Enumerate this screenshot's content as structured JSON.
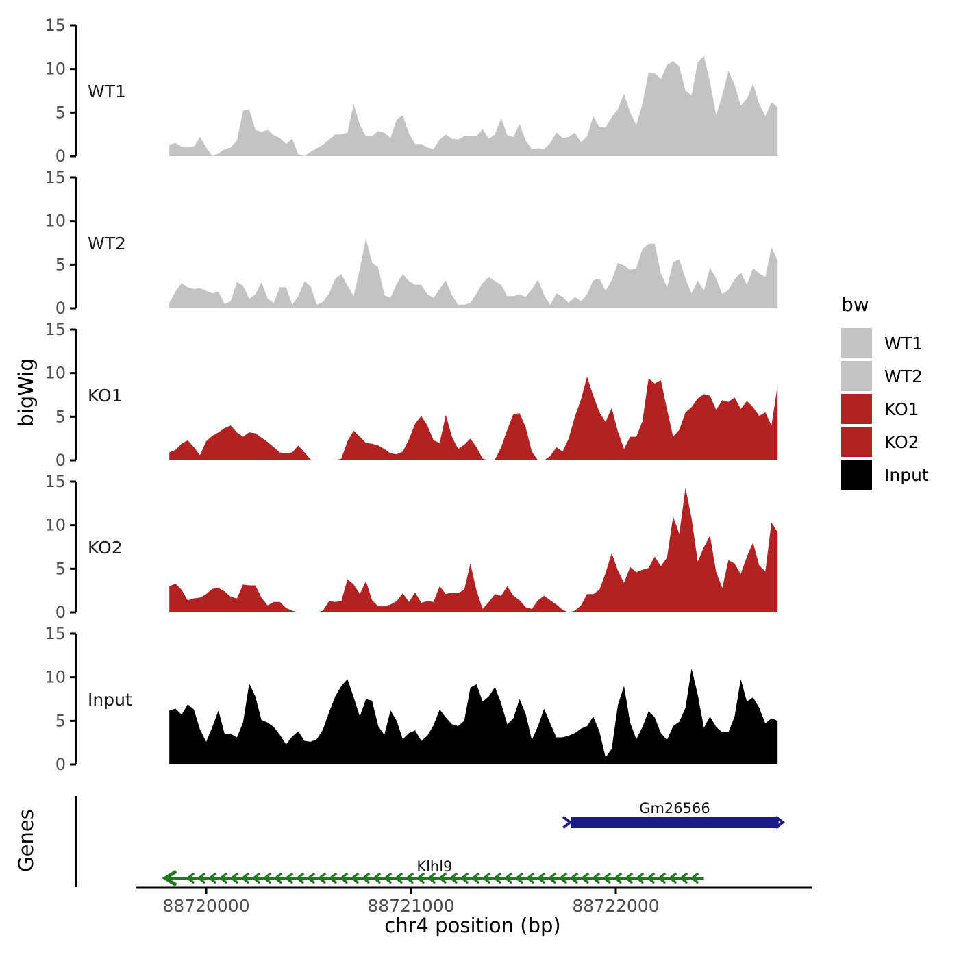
{
  "figure": {
    "y_axis_title": "bigWig",
    "genes_axis_title": "Genes",
    "x_axis_title": "chr4 position (bp)",
    "background": "#ffffff"
  },
  "y_axis": {
    "range": [
      0,
      15
    ],
    "ticks": [
      0,
      5,
      10,
      15
    ],
    "tick_color": "#4d4d4d"
  },
  "x_axis": {
    "title": "chr4 position (bp)",
    "ticks": [
      {
        "pos": 88720000,
        "label": "88720000"
      },
      {
        "pos": 88721000,
        "label": "88721000"
      },
      {
        "pos": 88722000,
        "label": "88722000"
      }
    ],
    "tick_color": "#4d4d4d"
  },
  "legend": {
    "title": "bw",
    "items": [
      {
        "label": "WT1",
        "color": "#c3c3c3"
      },
      {
        "label": "WT2",
        "color": "#c3c3c3"
      },
      {
        "label": "KO1",
        "color": "#b22222"
      },
      {
        "label": "KO2",
        "color": "#b22222"
      },
      {
        "label": "Input",
        "color": "#000000"
      }
    ]
  },
  "chart_data": {
    "type": "area",
    "title": "",
    "xlabel": "chr4 position (bp)",
    "ylabel": "bigWig",
    "ylim": [
      0,
      15
    ],
    "x_range": [
      88719650,
      88722960
    ],
    "x_start": 88719820,
    "x_step": 30,
    "grid": false,
    "legend_position": "right",
    "series": [
      {
        "name": "WT1",
        "color": "#c3c3c3",
        "values": [
          1.3,
          1.5,
          1.1,
          1.0,
          1.1,
          2.2,
          1.0,
          0,
          0.3,
          0.8,
          1.0,
          1.8,
          5.2,
          5.4,
          3.0,
          2.8,
          3.0,
          2.4,
          2.1,
          1.4,
          2.0,
          0.2,
          0,
          0.5,
          0.9,
          1.3,
          1.9,
          2.5,
          2.5,
          2.7,
          6.0,
          3.6,
          2.3,
          2.3,
          2.9,
          2.7,
          2.1,
          4.2,
          4.7,
          2.6,
          1.4,
          1.4,
          1.0,
          0.8,
          1.9,
          2.5,
          2.0,
          1.9,
          2.3,
          2.3,
          2.3,
          3.1,
          2.0,
          2.5,
          4.4,
          2.4,
          2.2,
          3.7,
          1.8,
          0.8,
          0.9,
          0.8,
          1.5,
          2.7,
          2.1,
          2.2,
          2.7,
          1.6,
          2.3,
          4.6,
          3.3,
          3.3,
          4.5,
          5.4,
          7.2,
          5.0,
          3.6,
          6.0,
          9.6,
          9.5,
          8.8,
          10.5,
          10.9,
          10.3,
          7.5,
          7.0,
          10.8,
          11.5,
          8.5,
          4.7,
          7.0,
          9.8,
          8.2,
          5.8,
          6.6,
          8.3,
          6.0,
          4.6,
          6.2,
          5.6
        ]
      },
      {
        "name": "WT2",
        "color": "#c3c3c3",
        "values": [
          0.6,
          1.9,
          2.9,
          2.4,
          2.2,
          2.3,
          2.0,
          1.7,
          1.9,
          0.5,
          0.8,
          3.0,
          2.6,
          1.1,
          1.6,
          3.0,
          1.1,
          0.6,
          2.4,
          2.4,
          0.4,
          1.4,
          3.1,
          2.5,
          0.4,
          0.7,
          1.7,
          3.4,
          3.9,
          2.6,
          1.4,
          4.5,
          8.0,
          5.2,
          4.7,
          1.5,
          1.2,
          2.8,
          3.9,
          3.1,
          2.7,
          2.7,
          1.6,
          1.2,
          2.2,
          3.2,
          1.5,
          0.4,
          0.4,
          0.6,
          1.7,
          2.9,
          3.6,
          3.1,
          2.7,
          1.4,
          1.4,
          1.6,
          1.3,
          2.2,
          3.3,
          1.5,
          0.4,
          1.7,
          1.3,
          0.6,
          1.3,
          0.8,
          1.6,
          3.2,
          3.4,
          2.0,
          3.2,
          5.2,
          4.9,
          4.4,
          4.6,
          6.8,
          7.4,
          7.4,
          4.0,
          2.4,
          5.3,
          5.6,
          3.4,
          1.7,
          3.2,
          2.0,
          4.7,
          3.4,
          1.6,
          2.1,
          3.3,
          4.1,
          2.7,
          4.6,
          4.0,
          3.6,
          7.0,
          5.5
        ]
      },
      {
        "name": "KO1",
        "color": "#b22222",
        "values": [
          0.9,
          1.2,
          1.9,
          2.3,
          1.5,
          0.6,
          2.2,
          2.8,
          3.2,
          3.7,
          4.0,
          3.2,
          2.7,
          3.2,
          3.1,
          2.6,
          2.1,
          1.5,
          0.9,
          0.8,
          0.9,
          1.7,
          0.9,
          0.1,
          0,
          0,
          0,
          0,
          0.2,
          2.2,
          3.4,
          2.7,
          2.0,
          1.9,
          1.7,
          1.3,
          0.8,
          0.7,
          1.0,
          2.4,
          4.2,
          5.1,
          4.0,
          2.3,
          2.0,
          5.2,
          2.7,
          1.3,
          1.8,
          2.5,
          1.5,
          0.2,
          0,
          0.1,
          1.5,
          3.5,
          5.3,
          5.4,
          3.8,
          1.0,
          0,
          0,
          0.5,
          1.5,
          1.0,
          2.5,
          5.0,
          7.0,
          9.6,
          7.4,
          5.5,
          4.4,
          6.0,
          3.3,
          1.3,
          2.7,
          2.7,
          4.5,
          9.4,
          8.8,
          9.2,
          5.8,
          2.7,
          3.5,
          5.5,
          6.1,
          7.1,
          7.6,
          7.4,
          5.8,
          6.9,
          6.7,
          7.2,
          5.9,
          6.8,
          6.1,
          5.1,
          5.5,
          4.0,
          8.6
        ]
      },
      {
        "name": "KO2",
        "color": "#b22222",
        "values": [
          3.0,
          3.3,
          2.6,
          1.4,
          1.6,
          1.7,
          2.1,
          2.7,
          2.8,
          2.4,
          1.8,
          1.6,
          3.2,
          3.1,
          3.1,
          1.7,
          0.8,
          1.2,
          1.2,
          0.5,
          0.2,
          0,
          0,
          0,
          0,
          0.2,
          1.3,
          1.2,
          1.3,
          3.8,
          3.2,
          2.1,
          3.6,
          1.4,
          0.7,
          0.7,
          0.9,
          1.3,
          2.2,
          1.2,
          2.3,
          1.1,
          1.3,
          1.2,
          3.0,
          2.1,
          2.3,
          2.2,
          2.6,
          5.6,
          2.5,
          0.4,
          1.2,
          2.1,
          1.9,
          3.0,
          1.9,
          1.4,
          0.6,
          0.4,
          1.4,
          1.9,
          1.4,
          0.9,
          0.3,
          0,
          0.2,
          0.8,
          2.1,
          2.1,
          2.6,
          4.5,
          6.8,
          4.8,
          3.4,
          5.2,
          4.6,
          4.9,
          5.1,
          6.4,
          5.3,
          6.3,
          11.0,
          9.0,
          14.3,
          10.8,
          5.8,
          7.5,
          8.8,
          4.6,
          2.8,
          6.0,
          5.6,
          4.4,
          6.4,
          8.0,
          5.4,
          4.7,
          10.3,
          9.2
        ]
      },
      {
        "name": "Input",
        "color": "#000000",
        "values": [
          6.2,
          6.4,
          5.7,
          6.9,
          6.3,
          4.0,
          2.6,
          4.3,
          6.2,
          3.5,
          3.5,
          3.1,
          4.8,
          9.3,
          7.8,
          5.1,
          4.8,
          4.3,
          3.4,
          2.3,
          3.2,
          3.8,
          2.7,
          2.6,
          2.9,
          4.0,
          6.0,
          7.8,
          9.0,
          9.8,
          7.7,
          5.5,
          7.5,
          7.3,
          4.4,
          3.4,
          6.2,
          5.0,
          2.9,
          3.6,
          3.9,
          2.7,
          3.3,
          4.5,
          6.3,
          5.4,
          4.6,
          4.4,
          5.0,
          8.8,
          9.2,
          7.2,
          7.8,
          8.9,
          7.0,
          4.6,
          5.3,
          7.5,
          5.8,
          2.8,
          4.4,
          6.4,
          4.7,
          3.1,
          3.1,
          3.3,
          3.6,
          4.1,
          4.4,
          5.5,
          3.8,
          0.8,
          1.8,
          6.8,
          9.0,
          4.8,
          2.9,
          4.3,
          6.1,
          5.4,
          3.6,
          2.8,
          4.4,
          4.9,
          6.5,
          11.0,
          8.0,
          4.2,
          5.5,
          4.3,
          3.7,
          3.7,
          5.5,
          9.8,
          7.2,
          7.7,
          6.5,
          4.7,
          5.3,
          5.0
        ]
      }
    ],
    "genes": [
      {
        "name": "Gm26566",
        "strand": "+",
        "start": 88721780,
        "end": 88722795,
        "color": "#191987",
        "glyph": "box"
      },
      {
        "name": "Klhl9",
        "strand": "-",
        "start": 88719800,
        "end": 88722430,
        "color": "#1e7b1e",
        "glyph": "chevron-line"
      }
    ]
  }
}
